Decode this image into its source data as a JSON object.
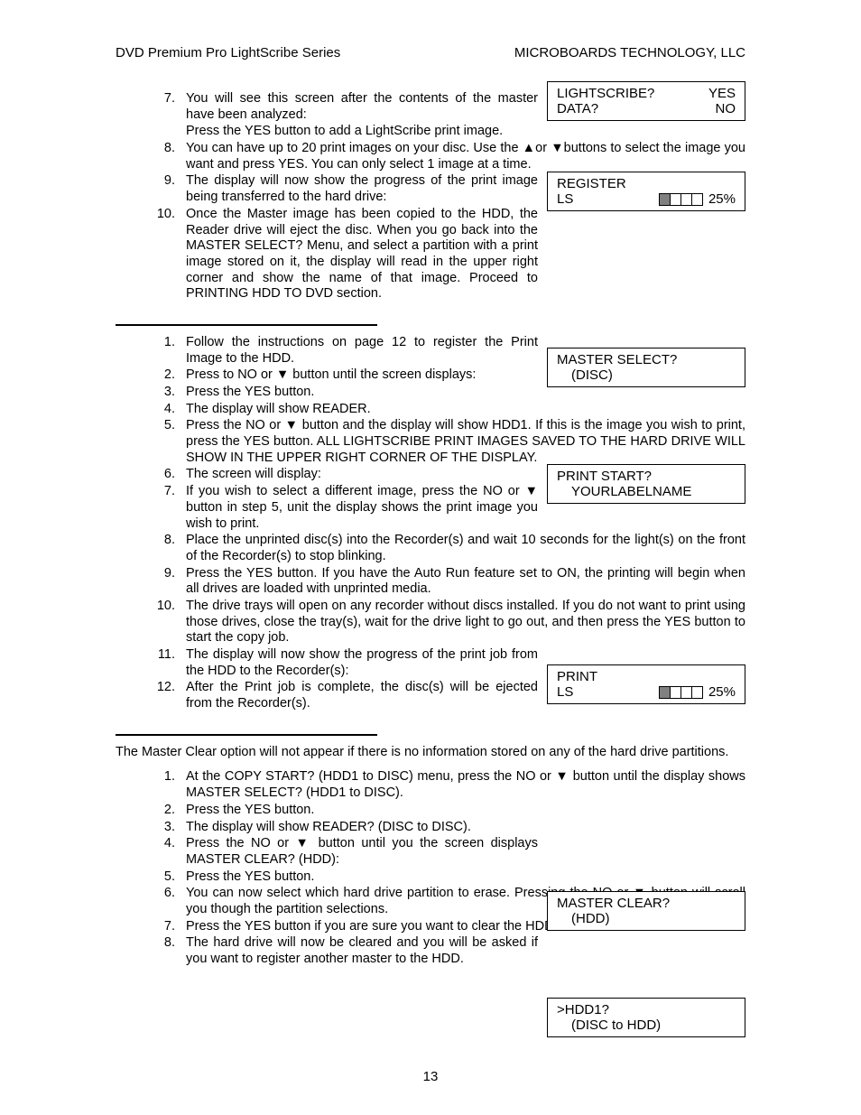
{
  "header": {
    "left": "DVD Premium Pro LightScribe Series",
    "right": "MICROBOARDS TECHNOLOGY, LLC"
  },
  "section1_items": [
    "You will see this screen after the contents of the master have been analyzed:\nPress the YES button to add a LightScribe print image.",
    "You can have up to 20 print images on your disc.  Use the ▲or ▼buttons to select the image you want and press YES.  You can only select 1 image at a time.",
    "The display will now show the progress of the print image being transferred to the hard drive:",
    "Once the Master image has been copied to the HDD, the Reader drive will eject the disc.  When you go back into the MASTER SELECT? Menu, and select a partition with a print image stored on it, the display will read        in the upper right corner and show the name of that image.  Proceed to PRINTING HDD TO DVD section."
  ],
  "section1_start": 7,
  "box1": {
    "l1a": "LIGHTSCRIBE?",
    "l1b": "YES",
    "l2a": "DATA?",
    "l2b": "NO"
  },
  "box2": {
    "l1": "REGISTER",
    "l2": "LS",
    "pct": "25%"
  },
  "section2_items": [
    "Follow the instructions on page 12 to register the Print Image to the HDD.",
    "Press to NO or ▼ button until the screen displays:",
    "Press the YES button.",
    "The display will show READER.",
    "Press the NO or ▼ button and the display will show HDD1.  If this is the image you wish to print, press the YES button.  ALL LIGHTSCRIBE PRINT IMAGES SAVED TO THE HARD DRIVE WILL SHOW       IN THE UPPER RIGHT CORNER OF THE DISPLAY.",
    "The screen will display:",
    "If you wish to select a different image, press the NO or ▼ button in step 5, unit the display shows the print image you wish to print.",
    "Place the unprinted disc(s) into the Recorder(s) and wait 10 seconds for the light(s) on the front of the Recorder(s) to stop blinking.",
    "Press the YES button.  If you have the Auto Run feature set to ON, the printing will begin when all drives are loaded with unprinted media.",
    "The drive trays will open on any recorder without discs installed.  If you do not want to print using those drives, close the tray(s), wait for the drive light to go out, and then press the YES button to start the copy job.",
    "The display will now show the progress of the print job from the HDD to the Recorder(s):",
    "After the Print job is complete, the disc(s) will be ejected from the Recorder(s)."
  ],
  "box3": {
    "l1": "MASTER SELECT?",
    "l2": "(DISC)"
  },
  "box4": {
    "l1": "PRINT START?",
    "l2": "YOURLABELNAME"
  },
  "box5": {
    "l1": "PRINT",
    "l2": "LS",
    "pct": "25%"
  },
  "section3_intro": "The Master Clear option will not appear if there is no information stored on any of the hard drive partitions.",
  "section3_items": [
    "At the COPY START? (HDD1 to DISC) menu, press the NO or ▼ button until the display shows MASTER SELECT? (HDD1 to DISC).",
    "Press the YES button.",
    "The display will show READER? (DISC to DISC).",
    "Press the NO or ▼ button until you the screen displays MASTER CLEAR? (HDD):",
    "Press the YES button.",
    "You can now select which hard drive partition to erase.  Pressing the NO or ▼ button will scroll you though the partition selections.",
    "Press the YES button if you are sure you want to clear the HDD.",
    "The hard drive will now be cleared and you will be asked if you want to register another master to the HDD."
  ],
  "box6": {
    "l1": "MASTER CLEAR?",
    "l2": "(HDD)"
  },
  "box7": {
    "l1": ">HDD1?",
    "l2": "(DISC to HDD)"
  },
  "page_number": "13"
}
